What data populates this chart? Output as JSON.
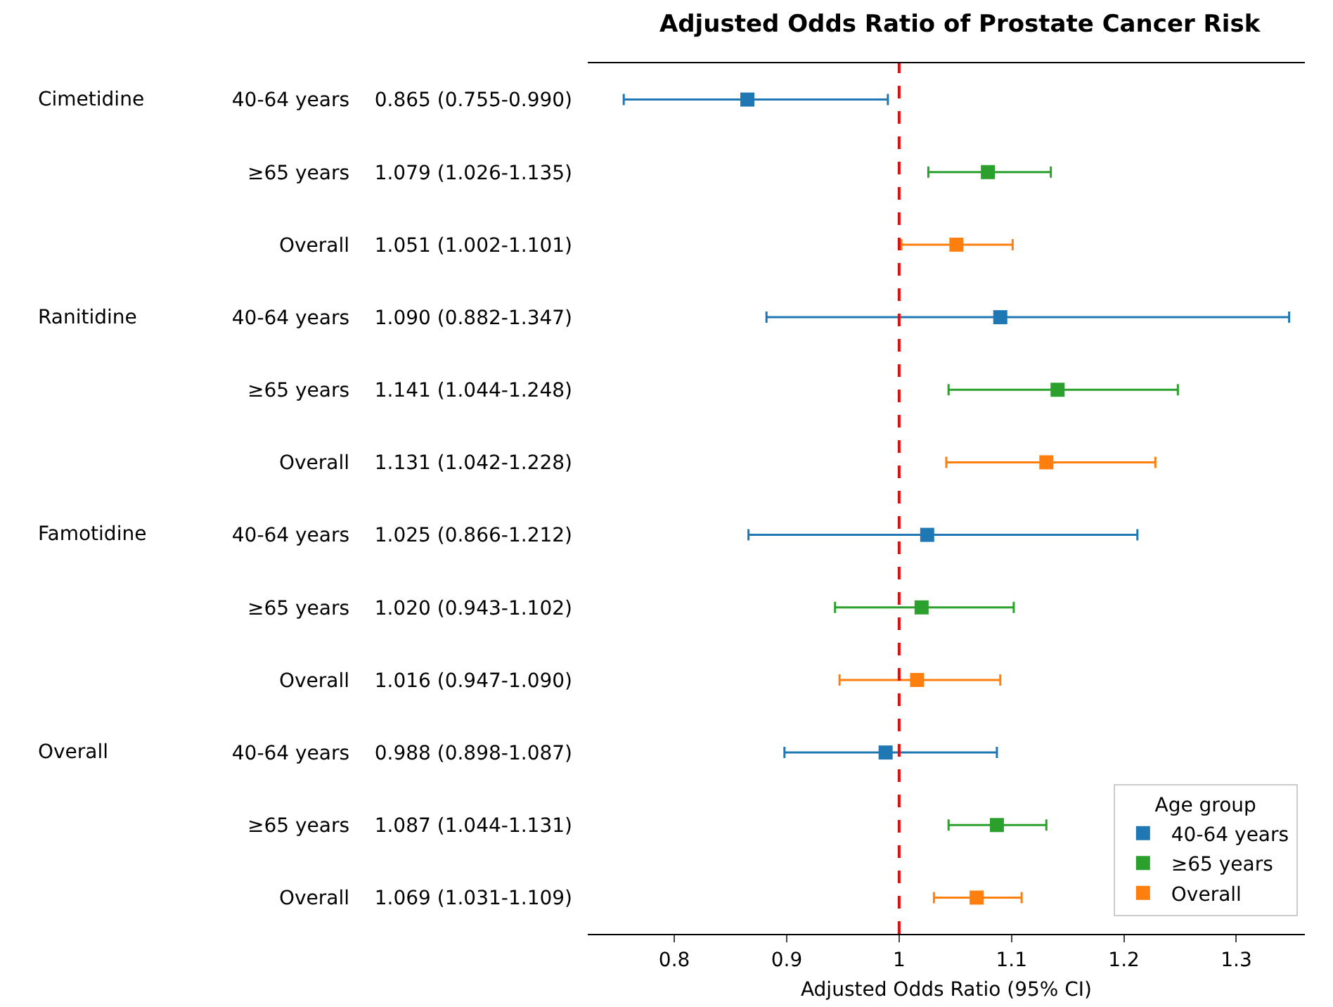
{
  "chart_data": {
    "type": "scatter",
    "orientation": "horizontal",
    "title": "Adjusted Odds Ratio of Prostate Cancer Risk",
    "xlabel": "Adjusted Odds Ratio (95% CI)",
    "legend_title": "Age group",
    "legend": "bottom right",
    "marker": "square",
    "grid": false,
    "categories": [
      "40-64 years    0.865 (0.755-0.990)",
      "≥65 years    1.079 (1.026-1.135)",
      "Overall    1.051 (1.002-1.101)",
      "40-64 years    1.090 (0.882-1.347)",
      "≥65 years    1.141 (1.044-1.248)",
      "Overall    1.131 (1.042-1.228)",
      "40-64 years    1.025 (0.866-1.212)",
      "≥65 years    1.020 (0.943-1.102)",
      "Overall    1.016 (0.947-1.090)",
      "40-64 years    0.988 (0.898-1.087)",
      "≥65 years    1.087 (1.044-1.131)",
      "Overall    1.069 (1.031-1.109)"
    ],
    "annotations": [
      "Cimetidine",
      "Ranitidine",
      "Famotidine",
      "Overall"
    ],
    "xlim": [
      0.723,
      1.361
    ],
    "xticks": [
      0.8,
      0.9,
      1.0,
      1.1,
      1.2,
      1.3
    ],
    "ref_lines": [
      {
        "axis": "x",
        "value": 1.0,
        "color": "#ff0000",
        "line_style": "dashed"
      }
    ],
    "series": [
      {
        "name": "40-64 years",
        "color": "#1f77b4",
        "values": [
          0.865,
          null,
          null,
          1.09,
          null,
          null,
          1.025,
          null,
          null,
          0.988,
          null,
          null
        ],
        "errors": [
          [
            0.755,
            0.99
          ],
          null,
          null,
          [
            0.882,
            1.347
          ],
          null,
          null,
          [
            0.866,
            1.212
          ],
          null,
          null,
          [
            0.898,
            1.087
          ],
          null,
          null
        ]
      },
      {
        "name": "≥65 years",
        "color": "#2ca02c",
        "values": [
          null,
          1.079,
          null,
          null,
          1.141,
          null,
          null,
          1.02,
          null,
          null,
          1.087,
          null
        ],
        "errors": [
          null,
          [
            1.026,
            1.135
          ],
          null,
          null,
          [
            1.044,
            1.248
          ],
          null,
          null,
          [
            0.943,
            1.102
          ],
          null,
          null,
          [
            1.044,
            1.131
          ],
          null
        ]
      },
      {
        "name": "Overall",
        "color": "#ff7f0e",
        "values": [
          null,
          null,
          1.051,
          null,
          null,
          1.131,
          null,
          null,
          1.016,
          null,
          null,
          1.069
        ],
        "errors": [
          null,
          null,
          [
            1.002,
            1.101
          ],
          null,
          null,
          [
            1.042,
            1.228
          ],
          null,
          null,
          [
            0.947,
            1.09
          ],
          null,
          null,
          [
            1.031,
            1.109
          ]
        ]
      }
    ]
  }
}
